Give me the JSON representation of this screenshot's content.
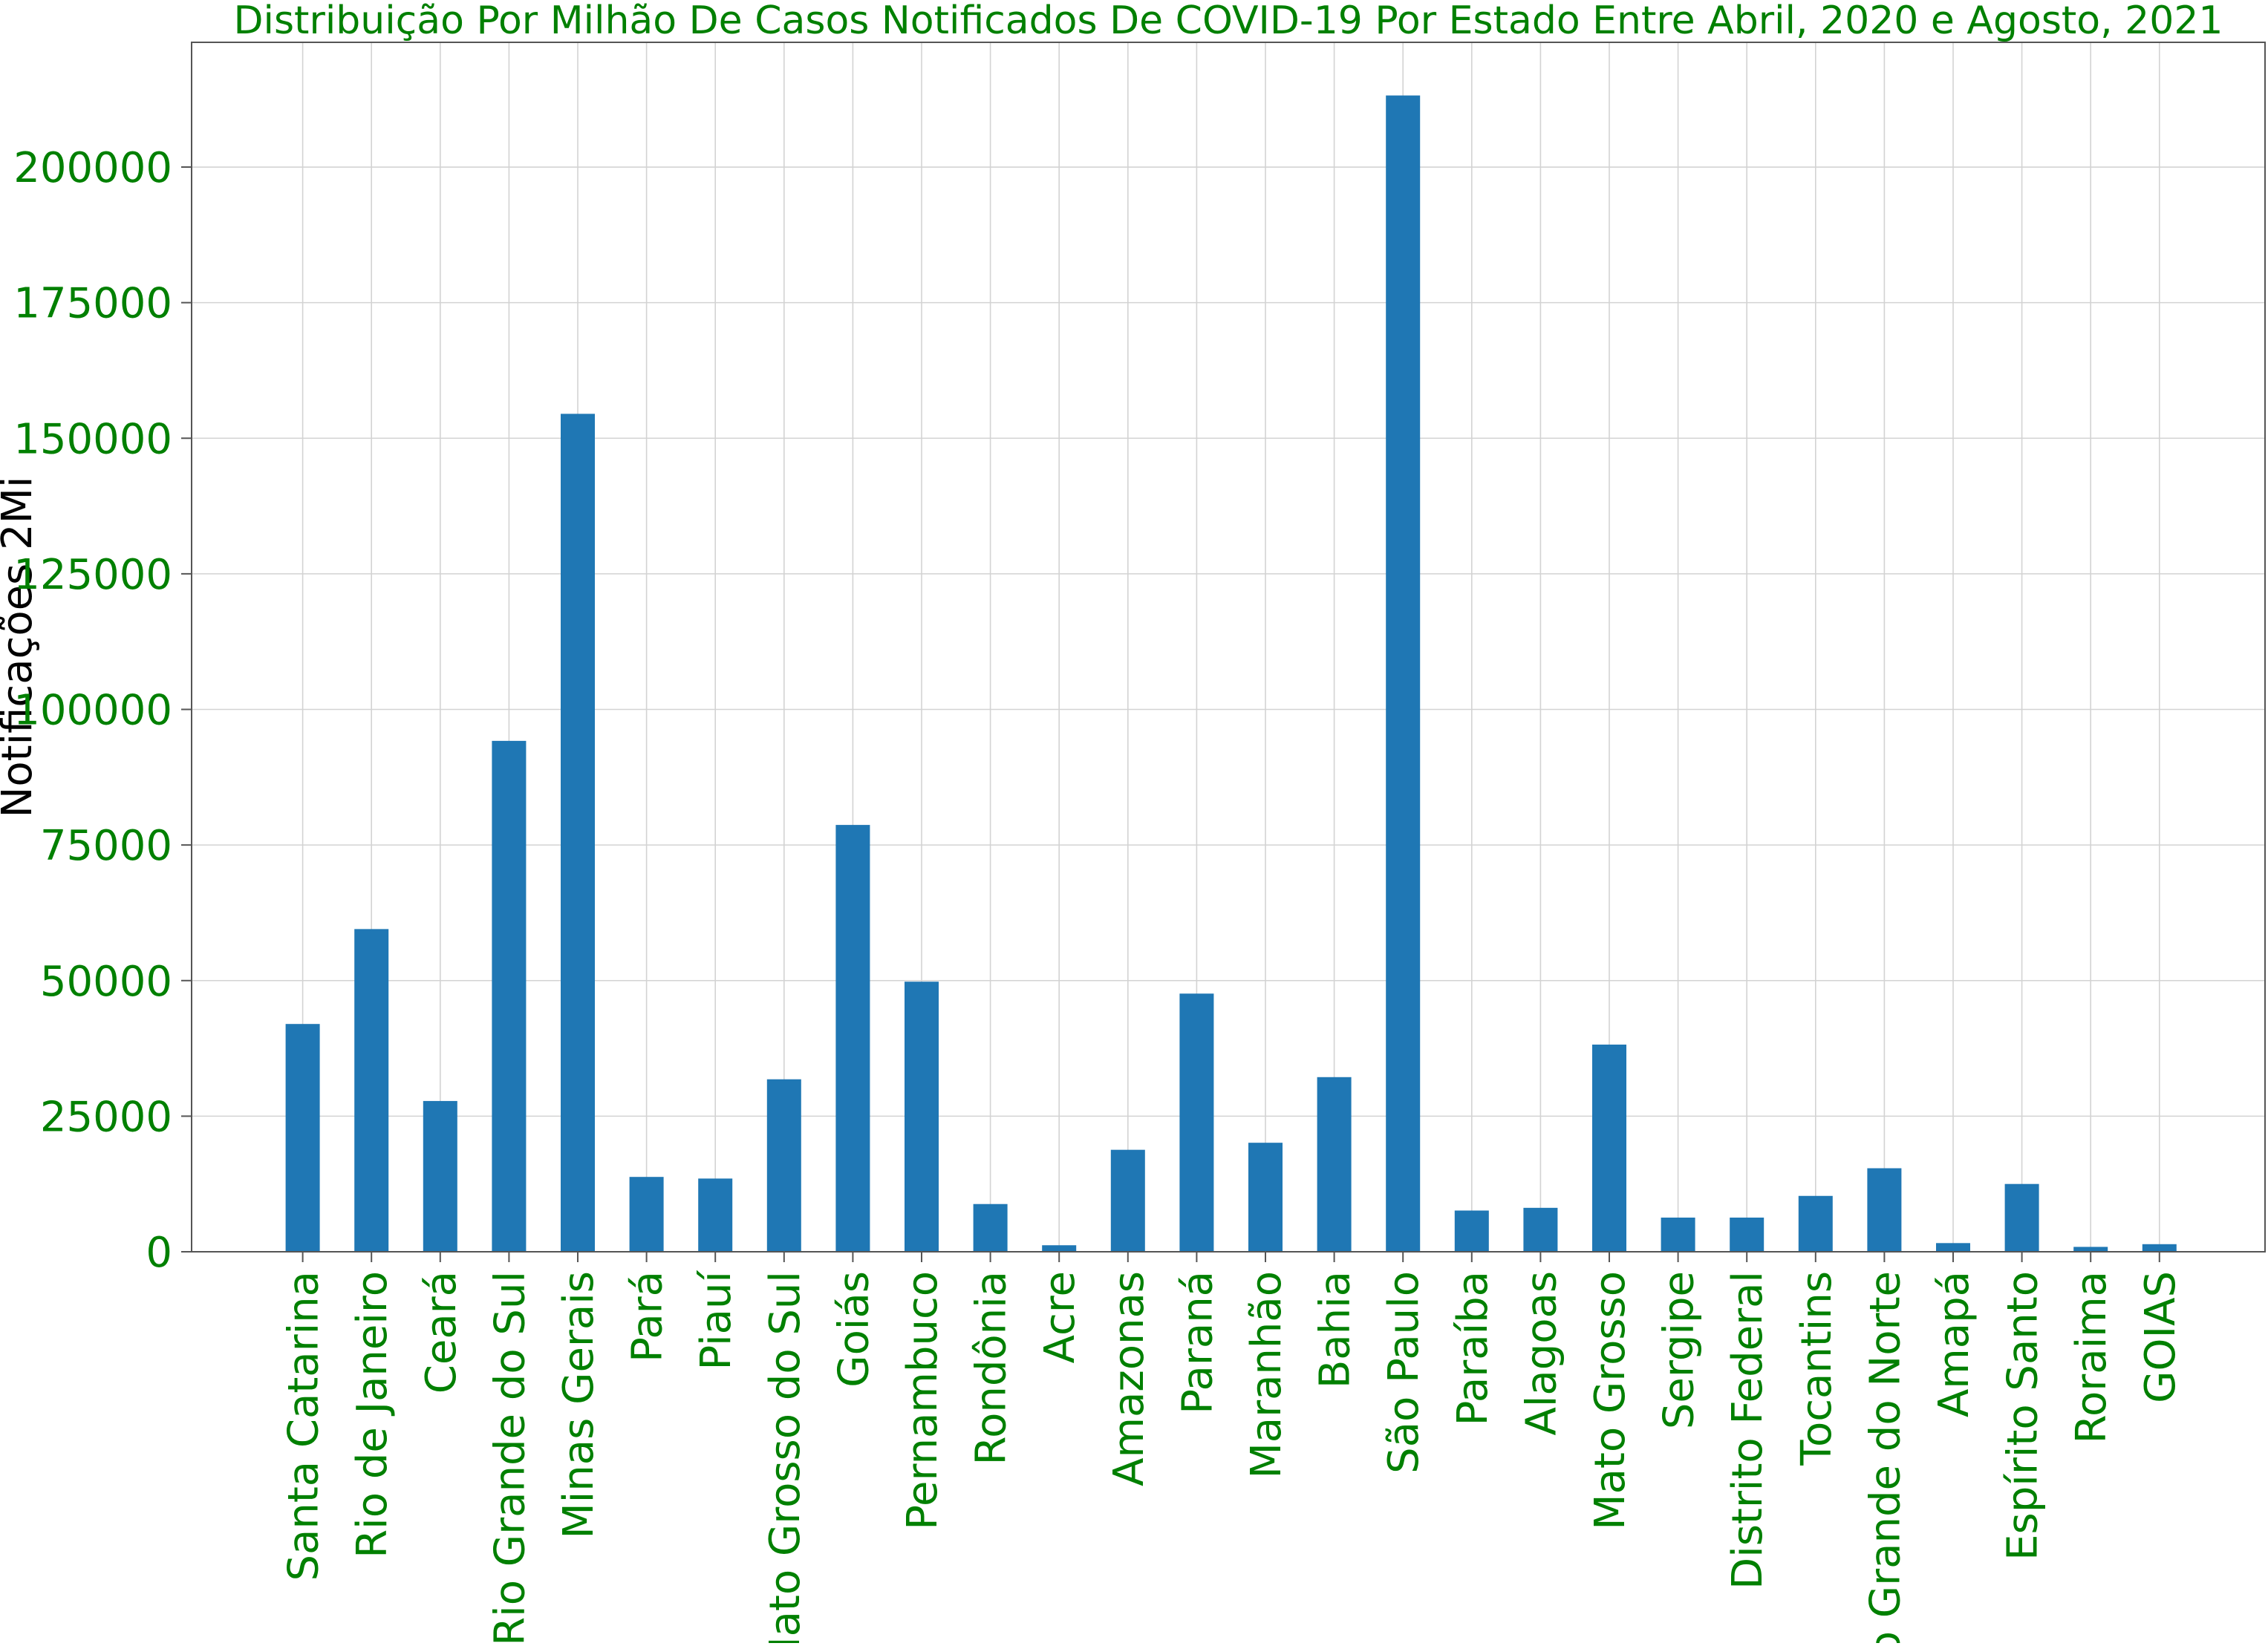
{
  "chart_data": {
    "type": "bar",
    "title": "Distribuição Por Milhão De Casos Notificados De COVID-19 Por Estado Entre Abril, 2020 e Agosto, 2021",
    "xlabel": "",
    "ylabel": "Notificações 2Mi",
    "ylim": [
      0,
      223000
    ],
    "yticks": [
      0,
      25000,
      50000,
      75000,
      100000,
      125000,
      150000,
      175000,
      200000
    ],
    "grid": true,
    "categories": [
      "Santa Catarina",
      "Rio de Janeiro",
      "Ceará",
      "Rio Grande do Sul",
      "Minas Gerais",
      "Pará",
      "Piauí",
      "Mato Grosso do Sul",
      "Goiás",
      "Pernambuco",
      "Rondônia",
      "Acre",
      "Amazonas",
      "Paraná",
      "Maranhão",
      "Bahia",
      "São Paulo",
      "Paraíba",
      "Alagoas",
      "Mato Grosso",
      "Sergipe",
      "Distrito Federal",
      "Tocantins",
      "Rio Grande do Norte",
      "Amapá",
      "Espírito Santo",
      "Roraima",
      "GOIAS"
    ],
    "values": [
      42000,
      59500,
      27800,
      94200,
      154500,
      13800,
      13500,
      31800,
      78700,
      49800,
      8800,
      1200,
      18800,
      47600,
      20100,
      32200,
      213200,
      7600,
      8100,
      38200,
      6300,
      6300,
      10300,
      15400,
      1600,
      12500,
      900,
      1400
    ]
  },
  "colors": {
    "bar": "#1f77b4",
    "text_green": "#008000",
    "ylabel_text": "#000000",
    "grid": "#d3d3d3",
    "axes": "#555555"
  }
}
